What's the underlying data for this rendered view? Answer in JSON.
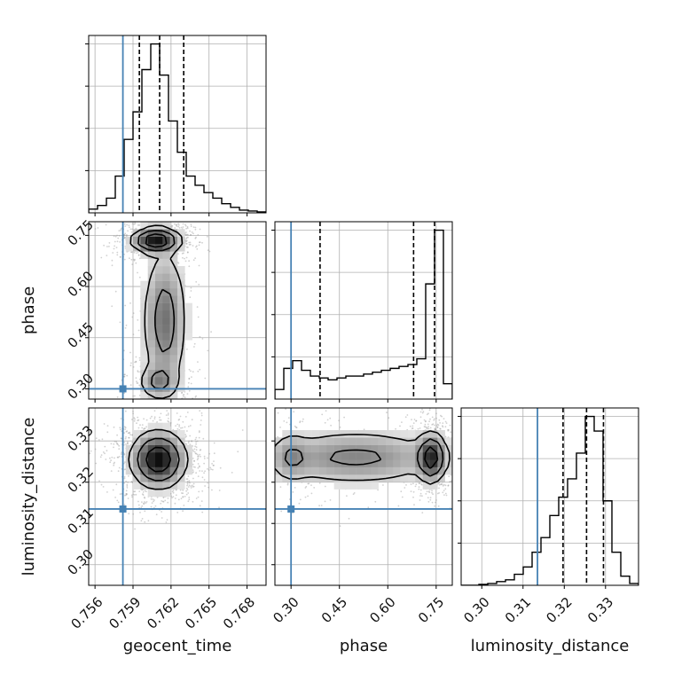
{
  "chart_data": {
    "type": "corner",
    "parameters": [
      "geocent_time",
      "phase",
      "luminosity_distance"
    ],
    "injection": {
      "geocent_time": 0.7582,
      "phase": 0.3,
      "luminosity_distance": 0.3135
    },
    "grid": true,
    "panels": [
      {
        "id": "hist-geocent_time",
        "kind": "histogram",
        "param": "geocent_time",
        "xlim": [
          0.7555,
          0.7695
        ],
        "bin_edges": [
          0.7555,
          0.7562,
          0.7569,
          0.7576,
          0.7583,
          0.759,
          0.7597,
          0.7604,
          0.7611,
          0.7618,
          0.7625,
          0.7632,
          0.7639,
          0.7646,
          0.7653,
          0.766,
          0.7667,
          0.7674,
          0.7681,
          0.7688,
          0.7695
        ],
        "counts": [
          0.02,
          0.04,
          0.08,
          0.2,
          0.4,
          0.55,
          0.78,
          0.92,
          0.75,
          0.5,
          0.33,
          0.2,
          0.15,
          0.11,
          0.08,
          0.05,
          0.03,
          0.015,
          0.01,
          0.005
        ],
        "quantiles": [
          0.7595,
          0.7611,
          0.763
        ],
        "x_tick_values": [
          0.756,
          0.759,
          0.762,
          0.765,
          0.768
        ]
      },
      {
        "id": "hist-phase",
        "kind": "histogram",
        "param": "phase",
        "xlim": [
          0.25,
          0.8
        ],
        "bin_edges": [
          0.25,
          0.2775,
          0.305,
          0.3325,
          0.36,
          0.3875,
          0.415,
          0.4425,
          0.47,
          0.4975,
          0.525,
          0.5525,
          0.58,
          0.6075,
          0.635,
          0.6625,
          0.69,
          0.7175,
          0.745,
          0.7725,
          0.8
        ],
        "counts": [
          0.05,
          0.16,
          0.2,
          0.15,
          0.12,
          0.11,
          0.1,
          0.11,
          0.12,
          0.12,
          0.13,
          0.14,
          0.15,
          0.16,
          0.17,
          0.18,
          0.21,
          0.6,
          0.88,
          0.08
        ],
        "quantiles": [
          0.39,
          0.68,
          0.745
        ],
        "x_tick_values": [
          0.3,
          0.45,
          0.6,
          0.75
        ],
        "x_tick_labels": [
          "0.30",
          "0.45",
          "0.60",
          "0.75"
        ]
      },
      {
        "id": "hist-luminosity_distance",
        "kind": "histogram",
        "param": "luminosity_distance",
        "xlim": [
          0.295,
          0.338
        ],
        "bin_edges": [
          0.295,
          0.29715,
          0.2993,
          0.30145,
          0.3036,
          0.30575,
          0.3079,
          0.31005,
          0.3122,
          0.31435,
          0.3165,
          0.31865,
          0.3208,
          0.32295,
          0.3251,
          0.32725,
          0.3294,
          0.33155,
          0.3337,
          0.33585,
          0.338
        ],
        "counts": [
          0.0,
          0.0,
          0.005,
          0.01,
          0.02,
          0.03,
          0.06,
          0.1,
          0.18,
          0.26,
          0.38,
          0.48,
          0.58,
          0.72,
          0.92,
          0.84,
          0.46,
          0.18,
          0.05,
          0.01
        ],
        "quantiles": [
          0.3197,
          0.3254,
          0.3295
        ],
        "x_tick_values": [
          0.3,
          0.31,
          0.32,
          0.33
        ],
        "x_tick_labels": [
          "0.30",
          "0.31",
          "0.32",
          "0.33"
        ]
      },
      {
        "id": "2d-phase-vs-geocent_time",
        "kind": "density2d",
        "x_param": "geocent_time",
        "y_param": "phase",
        "xlim": [
          0.7555,
          0.7695
        ],
        "ylim": [
          0.27,
          0.79
        ],
        "y_tick_values": [
          0.3,
          0.45,
          0.6,
          0.75
        ],
        "y_tick_labels": [
          "0.30",
          "0.45",
          "0.60",
          "0.75"
        ],
        "modes": [
          {
            "x": 0.7608,
            "y": 0.735,
            "sx": 0.00095,
            "sy": 0.018,
            "w": 1.0
          },
          {
            "x": 0.7615,
            "y": 0.5,
            "sx": 0.0009,
            "sy": 0.11,
            "w": 0.45
          },
          {
            "x": 0.761,
            "y": 0.32,
            "sx": 0.0008,
            "sy": 0.025,
            "w": 0.35
          }
        ]
      },
      {
        "id": "2d-luminosity_distance-vs-geocent_time",
        "kind": "density2d",
        "x_param": "geocent_time",
        "y_param": "luminosity_distance",
        "xlim": [
          0.7555,
          0.7695
        ],
        "ylim": [
          0.295,
          0.338
        ],
        "y_tick_values": [
          0.3,
          0.31,
          0.32,
          0.33
        ],
        "y_tick_labels": [
          "0.30",
          "0.31",
          "0.32",
          "0.33"
        ],
        "modes": [
          {
            "x": 0.761,
            "y": 0.3255,
            "sx": 0.0011,
            "sy": 0.0035,
            "w": 1.0
          }
        ]
      },
      {
        "id": "2d-luminosity_distance-vs-phase",
        "kind": "density2d",
        "x_param": "phase",
        "y_param": "luminosity_distance",
        "xlim": [
          0.25,
          0.8
        ],
        "ylim": [
          0.295,
          0.338
        ],
        "modes": [
          {
            "x": 0.735,
            "y": 0.326,
            "sx": 0.022,
            "sy": 0.003,
            "w": 1.0
          },
          {
            "x": 0.5,
            "y": 0.326,
            "sx": 0.15,
            "sy": 0.0035,
            "w": 0.45
          },
          {
            "x": 0.3,
            "y": 0.326,
            "sx": 0.03,
            "sy": 0.003,
            "w": 0.3
          }
        ]
      }
    ],
    "colors": {
      "hist": "#000000",
      "injection": "#4682b4",
      "grid": "#b0b0b0",
      "points": "#9a9a9a"
    }
  }
}
